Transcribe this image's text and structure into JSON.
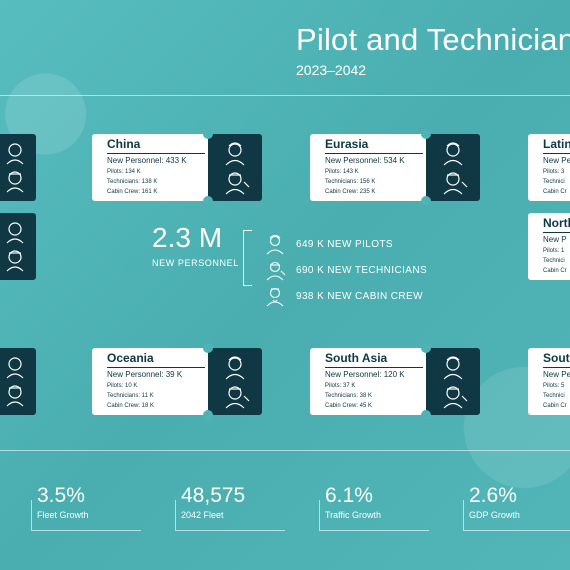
{
  "header": {
    "title": "Pilot and Technician",
    "subtitle": "2023–2042"
  },
  "regions": [
    {
      "name": "China",
      "new_personnel": "New Personnel: 433 K",
      "pilots": "Pilots: 134 K",
      "technicians": "Technicians: 138 K",
      "cabin_crew": "Cabin Crew: 161 K"
    },
    {
      "name": "Eurasia",
      "new_personnel": "New Personnel: 534 K",
      "pilots": "Pilots: 143 K",
      "technicians": "Technicians: 156 K",
      "cabin_crew": "Cabin Crew: 235 K"
    },
    {
      "name": "Latin",
      "new_personnel": "New Pe",
      "pilots": "Pilots: 3",
      "technicians": "Technici",
      "cabin_crew": "Cabin Cr"
    },
    {
      "name": "North",
      "new_personnel": "New P",
      "pilots": "Pilots: 1",
      "technicians": "Technici",
      "cabin_crew": "Cabin Cr"
    },
    {
      "name": "Oceania",
      "new_personnel": "New Personnel: 39 K",
      "pilots": "Pilots: 10 K",
      "technicians": "Technicians: 11 K",
      "cabin_crew": "Cabin Crew: 18 K"
    },
    {
      "name": "South Asia",
      "new_personnel": "New Personnel: 120 K",
      "pilots": "Pilots: 37 K",
      "technicians": "Technicians: 38 K",
      "cabin_crew": "Cabin Crew: 45 K"
    },
    {
      "name": "Sout",
      "new_personnel": "New Pe",
      "pilots": "Pilots: 5",
      "technicians": "Technici",
      "cabin_crew": "Cabin Cr"
    }
  ],
  "center": {
    "total": "2.3 M",
    "total_label": "NEW PERSONNEL",
    "items": [
      {
        "text": "649 K NEW PILOTS",
        "icon": "pilot-icon"
      },
      {
        "text": "690 K NEW TECHNICIANS",
        "icon": "technician-icon"
      },
      {
        "text": "938 K NEW CABIN CREW",
        "icon": "cabin-crew-icon"
      }
    ]
  },
  "stats": [
    {
      "value": "3.5%",
      "label": "Fleet Growth"
    },
    {
      "value": "48,575",
      "label": "2042 Fleet"
    },
    {
      "value": "6.1%",
      "label": "Traffic Growth"
    },
    {
      "value": "2.6%",
      "label": "GDP Growth"
    }
  ],
  "colors": {
    "background": "#4fb3b5",
    "dark": "#0f3744",
    "card": "#ffffff",
    "text_light": "#ffffff"
  }
}
